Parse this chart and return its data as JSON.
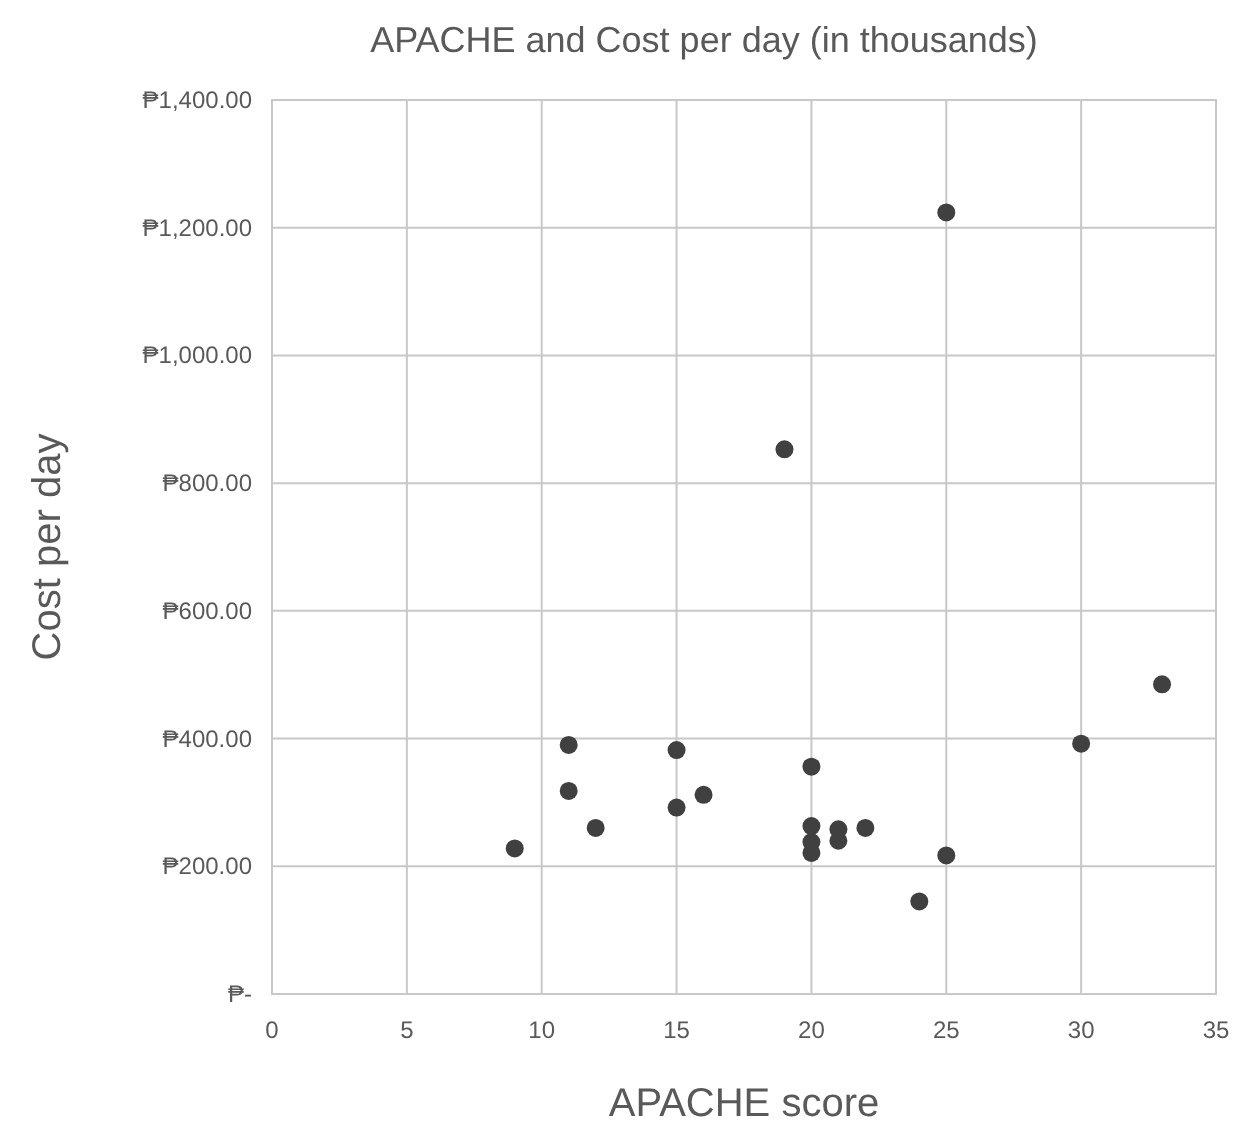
{
  "chart_data": {
    "type": "scatter",
    "title": "APACHE and Cost per day (in thousands)",
    "xlabel": "APACHE score",
    "ylabel": "Cost per day",
    "x": [
      11,
      11,
      9,
      12,
      15,
      15,
      16,
      20,
      20,
      20,
      20,
      21,
      21,
      22,
      25,
      24,
      30,
      33,
      25,
      19
    ],
    "series": [
      {
        "color": "#404040",
        "values": [
          390,
          318,
          228,
          260,
          382,
          292,
          312,
          356,
          263,
          238,
          221,
          258,
          240,
          260,
          217,
          145,
          392,
          485,
          1224,
          853
        ]
      }
    ],
    "xlim": [
      0,
      35
    ],
    "xticks": [
      0,
      5,
      10,
      15,
      20,
      25,
      30,
      35
    ],
    "ylim": [
      0,
      1400
    ],
    "yticks": [
      {
        "value": 0,
        "label": "₱-"
      },
      {
        "value": 200,
        "label": "₱200.00"
      },
      {
        "value": 400,
        "label": "₱400.00"
      },
      {
        "value": 600,
        "label": "₱600.00"
      },
      {
        "value": 800,
        "label": "₱800.00"
      },
      {
        "value": 1000,
        "label": "₱1,000.00"
      },
      {
        "value": 1200,
        "label": "₱1,200.00"
      },
      {
        "value": 1400,
        "label": "₱1,400.00"
      }
    ],
    "grid": true,
    "marker": "circle"
  }
}
